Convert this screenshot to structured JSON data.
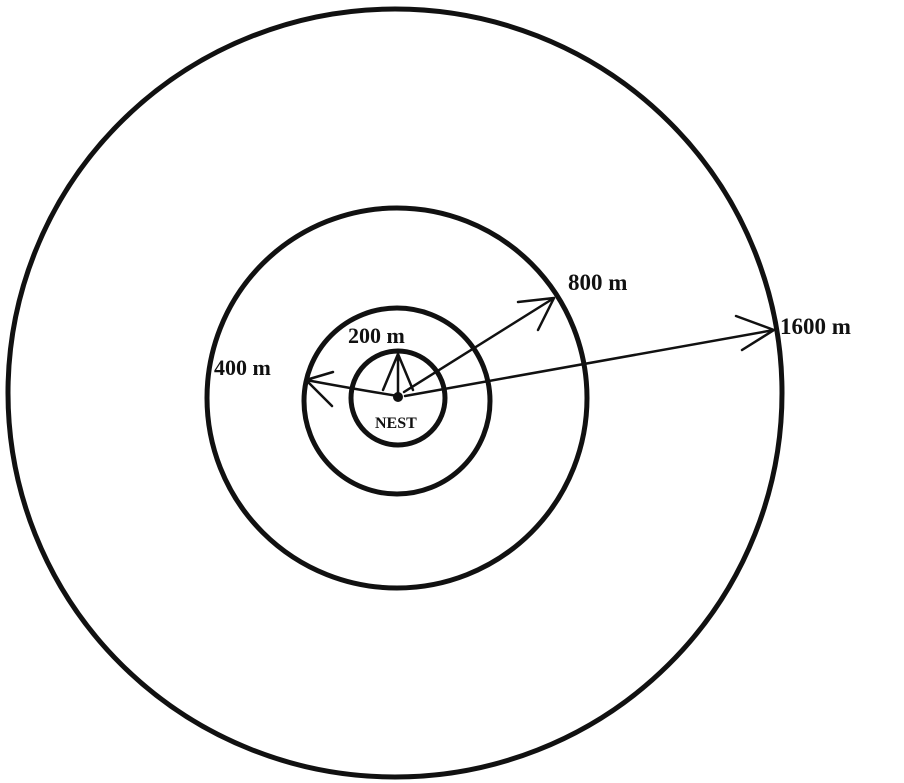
{
  "labels": {
    "ring_200": "200 m",
    "ring_400": "400 m",
    "ring_800": "800 m",
    "ring_1600": "1600 m",
    "center": "NEST"
  }
}
